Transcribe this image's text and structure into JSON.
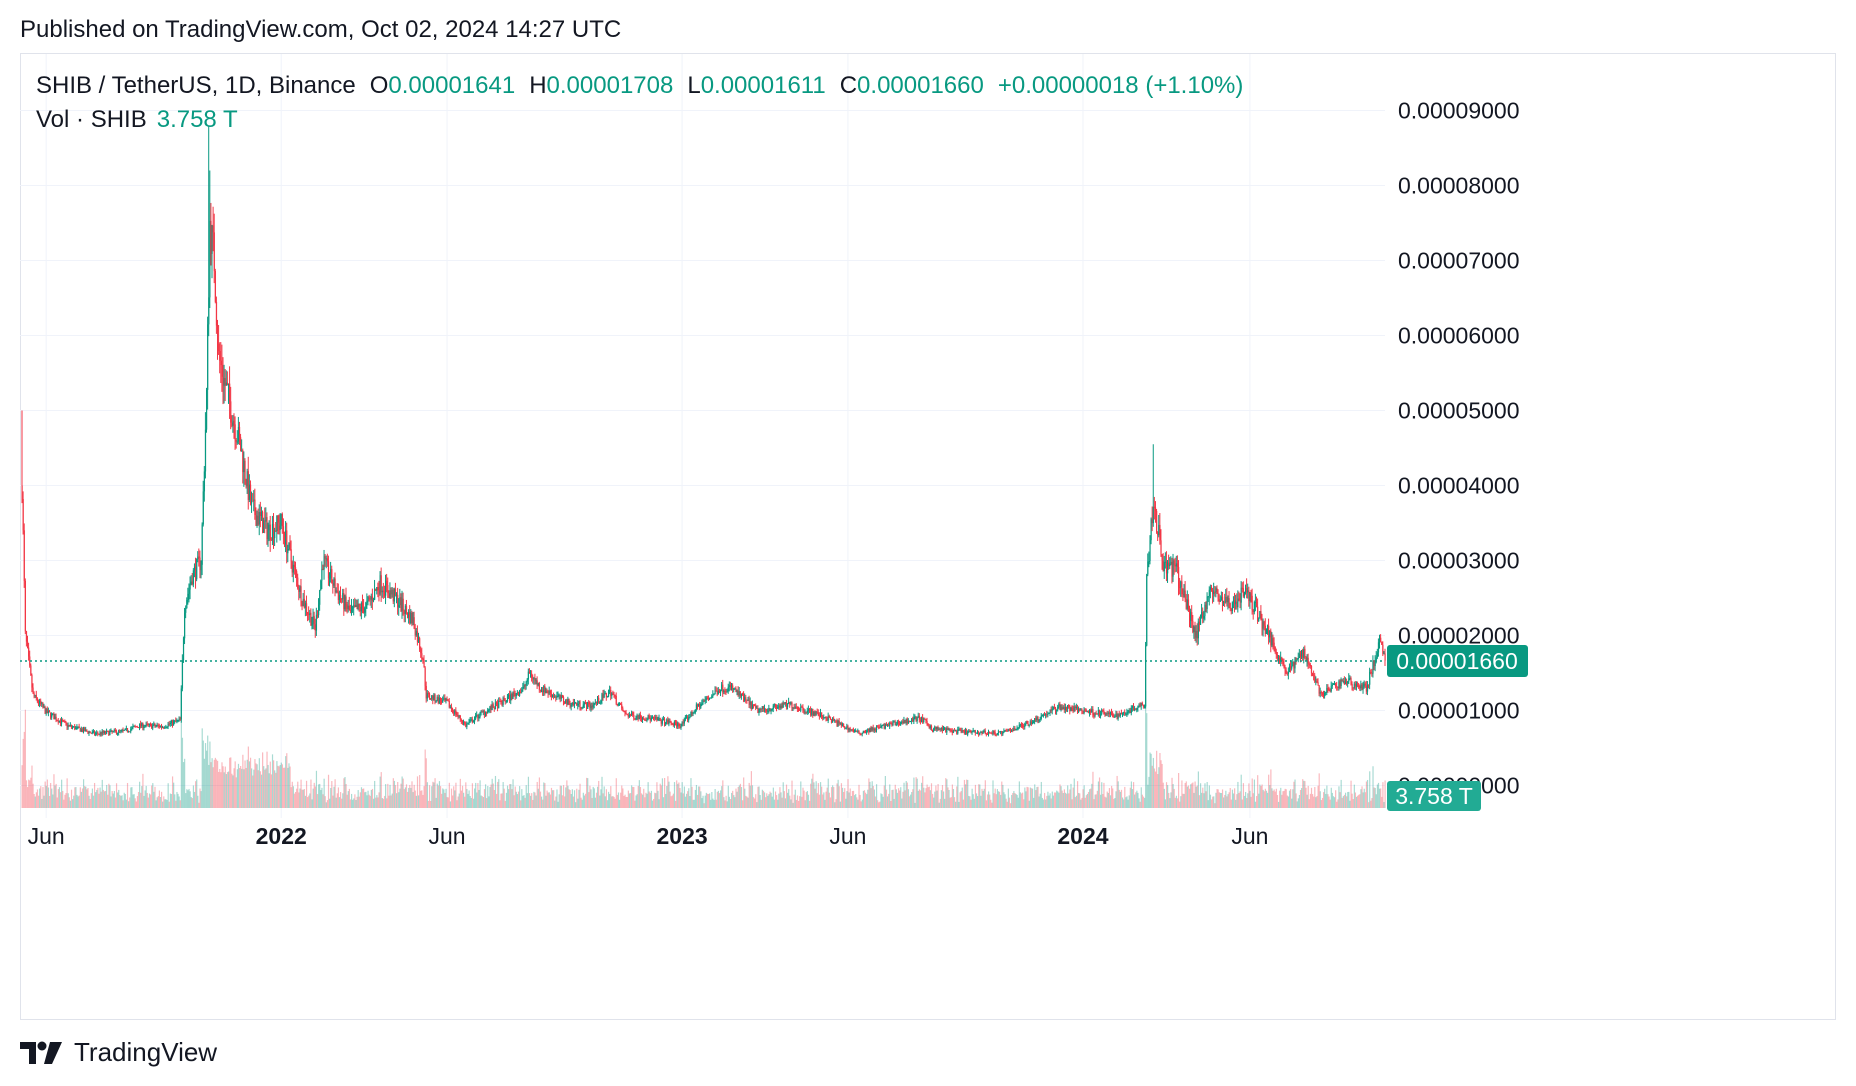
{
  "header": {
    "published": "Published on TradingView.com, Oct 02, 2024 14:27 UTC"
  },
  "legend": {
    "symbol": "SHIB / TetherUS, 1D, Binance",
    "open_label": "O",
    "open": "0.00001641",
    "high_label": "H",
    "high": "0.00001708",
    "low_label": "L",
    "low": "0.00001611",
    "close_label": "C",
    "close": "0.00001660",
    "change": "+0.00000018 (+1.10%)"
  },
  "volume_legend": {
    "label": "Vol · SHIB",
    "value": "3.758 T"
  },
  "price_tag": "0.00001660",
  "volume_tag": "3.758 T",
  "footer": {
    "brand": "TradingView"
  },
  "colors": {
    "up": "#089981",
    "down": "#f23645",
    "grid": "#f0f3fa",
    "text": "#131722"
  },
  "chart_data": {
    "type": "candlestick",
    "y_ticks": [
      "0.00009000",
      "0.00008000",
      "0.00007000",
      "0.00006000",
      "0.00005000",
      "0.00004000",
      "0.00003000",
      "0.00002000",
      "0.00001000",
      "0.00000000"
    ],
    "ylim": [
      0,
      9e-05
    ],
    "x_ticks": [
      {
        "label": "Jun",
        "date": "2021-06-01",
        "bold": false
      },
      {
        "label": "2022",
        "date": "2022-01-01",
        "bold": true
      },
      {
        "label": "Jun",
        "date": "2022-06-01",
        "bold": false
      },
      {
        "label": "2023",
        "date": "2023-01-01",
        "bold": true
      },
      {
        "label": "Jun",
        "date": "2023-06-01",
        "bold": false
      },
      {
        "label": "2024",
        "date": "2024-01-01",
        "bold": true
      },
      {
        "label": "Jun",
        "date": "2024-06-01",
        "bold": false
      }
    ],
    "xlim": [
      "2021-05-10",
      "2024-10-02"
    ],
    "last_close": 1.66e-05,
    "price_path": [
      [
        "2021-05-10",
        4e-05
      ],
      [
        "2021-05-13",
        2e-05
      ],
      [
        "2021-05-20",
        1.2e-05
      ],
      [
        "2021-06-01",
        9.8e-06
      ],
      [
        "2021-06-20",
        8e-06
      ],
      [
        "2021-07-15",
        6.9e-06
      ],
      [
        "2021-08-10",
        7.2e-06
      ],
      [
        "2021-08-25",
        8e-06
      ],
      [
        "2021-09-15",
        7.9e-06
      ],
      [
        "2021-10-01",
        8.7e-06
      ],
      [
        "2021-10-05",
        2.4e-05
      ],
      [
        "2021-10-12",
        2.8e-05
      ],
      [
        "2021-10-20",
        3e-05
      ],
      [
        "2021-10-25",
        5.2e-05
      ],
      [
        "2021-10-28",
        7.5e-05
      ],
      [
        "2021-11-01",
        7e-05
      ],
      [
        "2021-11-05",
        5.7e-05
      ],
      [
        "2021-11-15",
        5.1e-05
      ],
      [
        "2021-11-25",
        4.5e-05
      ],
      [
        "2021-12-05",
        3.7e-05
      ],
      [
        "2021-12-20",
        3.4e-05
      ],
      [
        "2022-01-01",
        3.5e-05
      ],
      [
        "2022-01-10",
        3e-05
      ],
      [
        "2022-01-20",
        2.5e-05
      ],
      [
        "2022-02-01",
        2.1e-05
      ],
      [
        "2022-02-08",
        3e-05
      ],
      [
        "2022-02-20",
        2.6e-05
      ],
      [
        "2022-03-05",
        2.3e-05
      ],
      [
        "2022-03-20",
        2.4e-05
      ],
      [
        "2022-04-01",
        2.7e-05
      ],
      [
        "2022-04-15",
        2.5e-05
      ],
      [
        "2022-05-01",
        2.2e-05
      ],
      [
        "2022-05-10",
        1.7e-05
      ],
      [
        "2022-05-13",
        1.2e-05
      ],
      [
        "2022-06-01",
        1.1e-05
      ],
      [
        "2022-06-18",
        8e-06
      ],
      [
        "2022-07-01",
        9.5e-06
      ],
      [
        "2022-07-20",
        1.1e-05
      ],
      [
        "2022-08-10",
        1.3e-05
      ],
      [
        "2022-08-15",
        1.5e-05
      ],
      [
        "2022-08-25",
        1.3e-05
      ],
      [
        "2022-09-20",
        1.1e-05
      ],
      [
        "2022-10-10",
        1.06e-05
      ],
      [
        "2022-10-28",
        1.25e-05
      ],
      [
        "2022-11-10",
        9.5e-06
      ],
      [
        "2022-12-01",
        9e-06
      ],
      [
        "2022-12-31",
        8e-06
      ],
      [
        "2023-01-15",
        1.05e-05
      ],
      [
        "2023-02-05",
        1.3e-05
      ],
      [
        "2023-02-15",
        1.3e-05
      ],
      [
        "2023-03-10",
        1e-05
      ],
      [
        "2023-04-10",
        1.08e-05
      ],
      [
        "2023-05-10",
        9.2e-06
      ],
      [
        "2023-06-10",
        7e-06
      ],
      [
        "2023-07-01",
        7.8e-06
      ],
      [
        "2023-08-05",
        9e-06
      ],
      [
        "2023-08-17",
        7.6e-06
      ],
      [
        "2023-09-15",
        7.1e-06
      ],
      [
        "2023-10-20",
        7e-06
      ],
      [
        "2023-11-15",
        8.5e-06
      ],
      [
        "2023-12-10",
        1.05e-05
      ],
      [
        "2024-01-01",
        1e-05
      ],
      [
        "2024-02-01",
        9.3e-06
      ],
      [
        "2024-02-26",
        1.1e-05
      ],
      [
        "2024-02-28",
        2.8e-05
      ],
      [
        "2024-03-05",
        3.8e-05
      ],
      [
        "2024-03-15",
        2.9e-05
      ],
      [
        "2024-03-25",
        2.9e-05
      ],
      [
        "2024-04-13",
        2e-05
      ],
      [
        "2024-04-25",
        2.6e-05
      ],
      [
        "2024-05-15",
        2.4e-05
      ],
      [
        "2024-05-28",
        2.6e-05
      ],
      [
        "2024-06-15",
        2.1e-05
      ],
      [
        "2024-07-05",
        1.5e-05
      ],
      [
        "2024-07-20",
        1.8e-05
      ],
      [
        "2024-08-05",
        1.2e-05
      ],
      [
        "2024-08-25",
        1.4e-05
      ],
      [
        "2024-09-15",
        1.3e-05
      ],
      [
        "2024-09-27",
        1.9e-05
      ],
      [
        "2024-10-02",
        1.66e-05
      ]
    ]
  }
}
